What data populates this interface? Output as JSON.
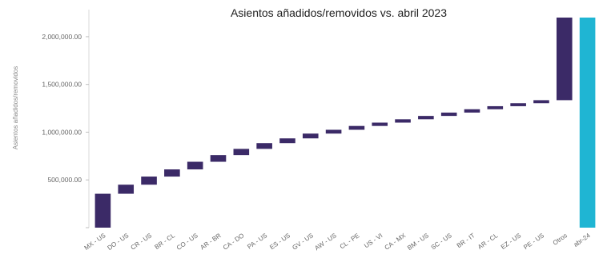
{
  "chart_data": {
    "type": "bar",
    "subtype": "waterfall",
    "title": "Asientos añadidos/removidos vs. abril 2023",
    "ylabel": "Asientos añadidos/removidos",
    "xlabel": "",
    "ylim": [
      0,
      2200000
    ],
    "yticks": [
      500000,
      1000000,
      1500000,
      2000000
    ],
    "ytick_labels": [
      "",
      "500,000.00",
      "1,000,000.00",
      "1,500,000.00",
      "2,000,000.00"
    ],
    "grid": false,
    "legend": "none",
    "colors": {
      "increase": "#3b2a67",
      "total": "#1fb5d3"
    },
    "categories": [
      "MX - US",
      "DO - US",
      "CR - US",
      "BR - CL",
      "CO - US",
      "AR - BR",
      "CA - DO",
      "PA - US",
      "ES - US",
      "GV - US",
      "AW - US",
      "CL - PE",
      "US - VI",
      "CA - MX",
      "BM - US",
      "SC - US",
      "BR - IT",
      "AR - CL",
      "EZ - US",
      "PE - US",
      "Otros",
      "abr-24"
    ],
    "bars": [
      {
        "category": "MX - US",
        "start": 0,
        "end": 355000,
        "kind": "increase"
      },
      {
        "category": "DO - US",
        "start": 355000,
        "end": 450000,
        "kind": "increase"
      },
      {
        "category": "CR - US",
        "start": 450000,
        "end": 535000,
        "kind": "increase"
      },
      {
        "category": "BR - CL",
        "start": 535000,
        "end": 610000,
        "kind": "increase"
      },
      {
        "category": "CO - US",
        "start": 610000,
        "end": 690000,
        "kind": "increase"
      },
      {
        "category": "AR - BR",
        "start": 690000,
        "end": 760000,
        "kind": "increase"
      },
      {
        "category": "CA - DO",
        "start": 760000,
        "end": 825000,
        "kind": "increase"
      },
      {
        "category": "PA - US",
        "start": 825000,
        "end": 885000,
        "kind": "increase"
      },
      {
        "category": "ES - US",
        "start": 885000,
        "end": 935000,
        "kind": "increase"
      },
      {
        "category": "GV - US",
        "start": 935000,
        "end": 985000,
        "kind": "increase"
      },
      {
        "category": "AW - US",
        "start": 985000,
        "end": 1025000,
        "kind": "increase"
      },
      {
        "category": "CL - PE",
        "start": 1025000,
        "end": 1065000,
        "kind": "increase"
      },
      {
        "category": "US - VI",
        "start": 1065000,
        "end": 1100000,
        "kind": "increase"
      },
      {
        "category": "CA - MX",
        "start": 1100000,
        "end": 1135000,
        "kind": "increase"
      },
      {
        "category": "BM - US",
        "start": 1135000,
        "end": 1170000,
        "kind": "increase"
      },
      {
        "category": "SC - US",
        "start": 1170000,
        "end": 1205000,
        "kind": "increase"
      },
      {
        "category": "BR - IT",
        "start": 1205000,
        "end": 1240000,
        "kind": "increase"
      },
      {
        "category": "AR - CL",
        "start": 1240000,
        "end": 1272000,
        "kind": "increase"
      },
      {
        "category": "EZ - US",
        "start": 1272000,
        "end": 1303000,
        "kind": "increase"
      },
      {
        "category": "PE - US",
        "start": 1303000,
        "end": 1335000,
        "kind": "increase"
      },
      {
        "category": "Otros",
        "start": 1335000,
        "end": 2200000,
        "kind": "increase"
      },
      {
        "category": "abr-24",
        "start": 0,
        "end": 2200000,
        "kind": "total"
      }
    ]
  }
}
